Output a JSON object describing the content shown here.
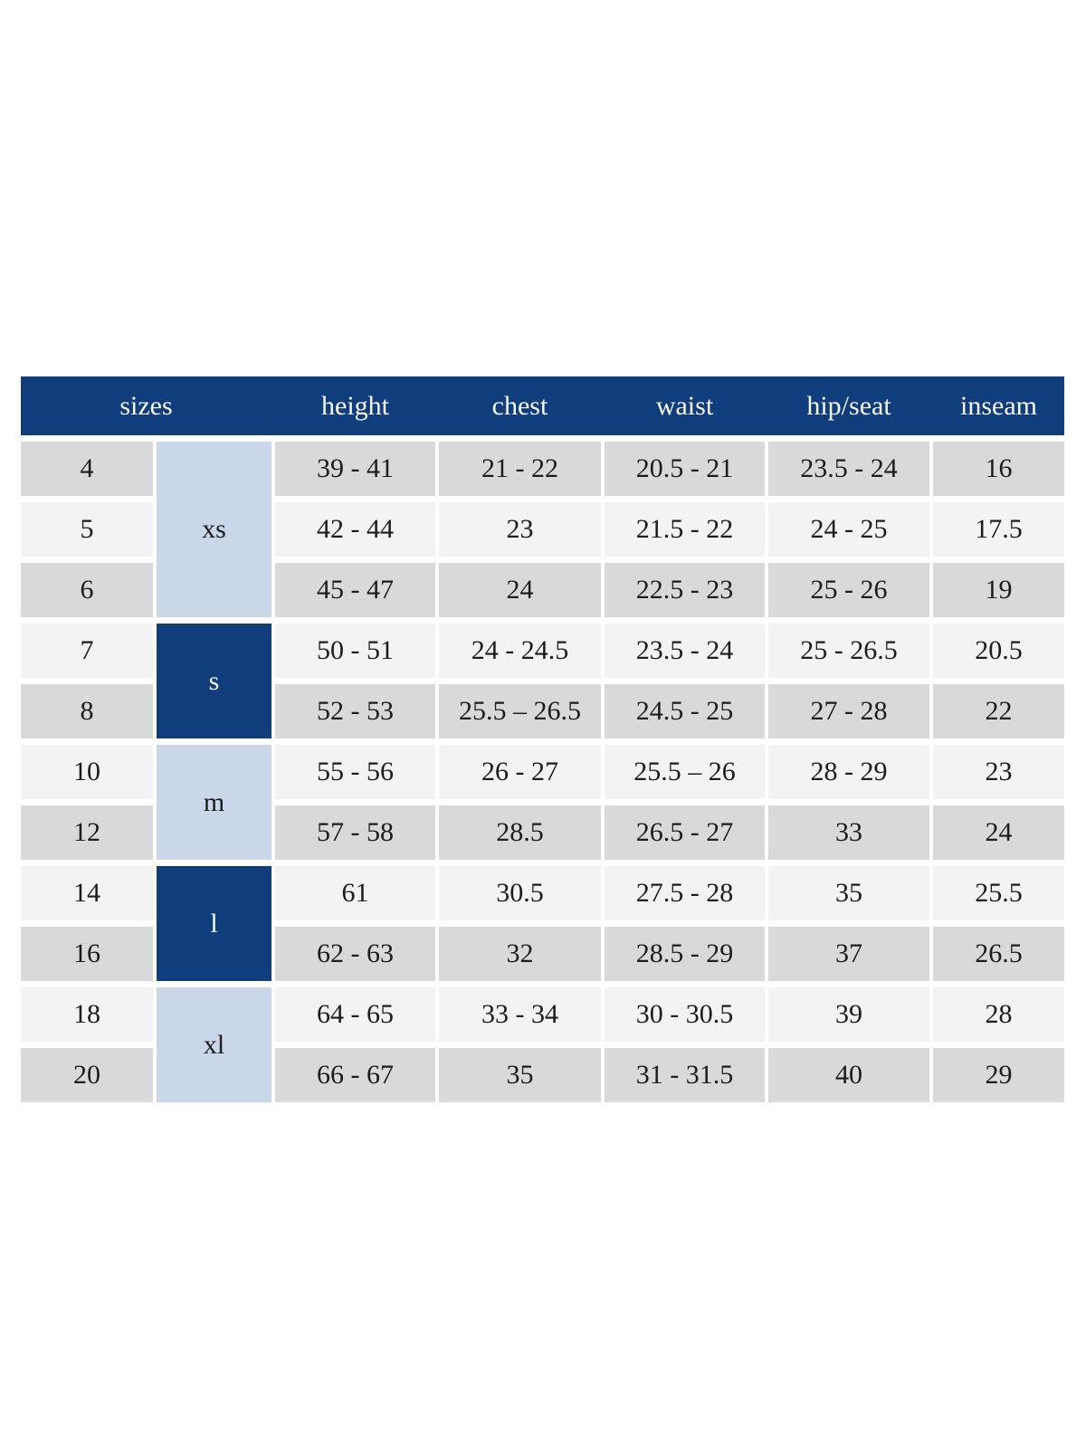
{
  "table": {
    "columns": [
      "sizes",
      "height",
      "chest",
      "waist",
      "hip/seat",
      "inseam"
    ],
    "groups": [
      {
        "label": "xs",
        "rows_spanned": 3,
        "variant": "light"
      },
      {
        "label": "s",
        "rows_spanned": 2,
        "variant": "dark"
      },
      {
        "label": "m",
        "rows_spanned": 2,
        "variant": "light"
      },
      {
        "label": "l",
        "rows_spanned": 2,
        "variant": "dark"
      },
      {
        "label": "xl",
        "rows_spanned": 2,
        "variant": "light"
      }
    ],
    "rows": [
      {
        "size": "4",
        "height": "39 - 41",
        "chest": "21 - 22",
        "waist": "20.5 - 21",
        "hip_seat": "23.5 - 24",
        "inseam": "16"
      },
      {
        "size": "5",
        "height": "42 - 44",
        "chest": "23",
        "waist": "21.5 - 22",
        "hip_seat": "24 - 25",
        "inseam": "17.5"
      },
      {
        "size": "6",
        "height": "45 - 47",
        "chest": "24",
        "waist": "22.5 - 23",
        "hip_seat": "25 - 26",
        "inseam": "19"
      },
      {
        "size": "7",
        "height": "50 - 51",
        "chest": "24 - 24.5",
        "waist": "23.5 - 24",
        "hip_seat": "25 - 26.5",
        "inseam": "20.5"
      },
      {
        "size": "8",
        "height": "52 - 53",
        "chest": "25.5 – 26.5",
        "waist": "24.5 - 25",
        "hip_seat": "27 - 28",
        "inseam": "22"
      },
      {
        "size": "10",
        "height": "55 - 56",
        "chest": "26 - 27",
        "waist": "25.5 – 26",
        "hip_seat": "28 - 29",
        "inseam": "23"
      },
      {
        "size": "12",
        "height": "57 - 58",
        "chest": "28.5",
        "waist": "26.5 - 27",
        "hip_seat": "33",
        "inseam": "24"
      },
      {
        "size": "14",
        "height": "61",
        "chest": "30.5",
        "waist": "27.5 - 28",
        "hip_seat": "35",
        "inseam": "25.5"
      },
      {
        "size": "16",
        "height": "62 - 63",
        "chest": "32",
        "waist": "28.5 - 29",
        "hip_seat": "37",
        "inseam": "26.5"
      },
      {
        "size": "18",
        "height": "64 - 65",
        "chest": "33 - 34",
        "waist": "30 - 30.5",
        "hip_seat": "39",
        "inseam": "28"
      },
      {
        "size": "20",
        "height": "66 - 67",
        "chest": "35",
        "waist": "31 - 31.5",
        "hip_seat": "40",
        "inseam": "29"
      }
    ]
  },
  "colors": {
    "header_bg": "#103d7c",
    "group_dark_bg": "#103d7c",
    "group_light_bg": "#c9d7e9",
    "row_gray": "#d9d9d9",
    "row_light": "#f3f3f3",
    "header_text": "#f7f9fc",
    "body_text": "#1c1c1c",
    "gutter": "#ffffff"
  }
}
